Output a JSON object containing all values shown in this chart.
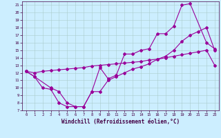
{
  "xlabel": "Windchill (Refroidissement éolien,°C)",
  "bg_color": "#cceeff",
  "grid_color": "#aacccc",
  "line_color": "#990099",
  "xlim": [
    -0.5,
    23.5
  ],
  "ylim": [
    7,
    21.5
  ],
  "xticks": [
    0,
    1,
    2,
    3,
    4,
    5,
    6,
    7,
    8,
    9,
    10,
    11,
    12,
    13,
    14,
    15,
    16,
    17,
    18,
    19,
    20,
    21,
    22,
    23
  ],
  "yticks": [
    7,
    8,
    9,
    10,
    11,
    12,
    13,
    14,
    15,
    16,
    17,
    18,
    19,
    20,
    21
  ],
  "curve1_x": [
    0,
    1,
    3,
    4,
    5,
    6,
    7,
    8,
    9,
    10,
    11,
    12,
    13,
    14,
    15,
    16,
    17,
    18,
    19,
    20,
    22,
    23
  ],
  "curve1_y": [
    12.2,
    11.5,
    10.0,
    9.5,
    8.0,
    7.5,
    7.5,
    9.5,
    12.7,
    11.2,
    11.7,
    14.5,
    14.5,
    15.0,
    15.2,
    17.2,
    17.2,
    18.2,
    21.0,
    21.2,
    16.0,
    15.2
  ],
  "curve2_x": [
    0,
    1,
    2,
    3,
    4,
    5,
    6,
    7,
    8,
    9,
    10,
    11,
    12,
    13,
    14,
    15,
    16,
    17,
    18,
    19,
    20,
    21,
    22,
    23
  ],
  "curve2_y": [
    12.2,
    12.0,
    12.2,
    12.3,
    12.4,
    12.5,
    12.6,
    12.7,
    12.9,
    13.0,
    13.1,
    13.2,
    13.3,
    13.4,
    13.5,
    13.7,
    13.8,
    14.0,
    14.2,
    14.4,
    14.6,
    14.8,
    15.0,
    13.0
  ],
  "curve3_x": [
    0,
    1,
    2,
    3,
    4,
    5,
    6,
    7,
    8,
    9,
    10,
    11,
    12,
    13,
    14,
    15,
    16,
    17,
    18,
    19,
    20,
    21,
    22,
    23
  ],
  "curve3_y": [
    12.2,
    11.5,
    10.0,
    9.8,
    8.0,
    7.5,
    7.5,
    7.5,
    9.5,
    9.5,
    11.0,
    11.5,
    12.0,
    12.5,
    12.8,
    13.2,
    13.8,
    14.2,
    15.0,
    16.2,
    17.0,
    17.5,
    18.0,
    15.0
  ]
}
